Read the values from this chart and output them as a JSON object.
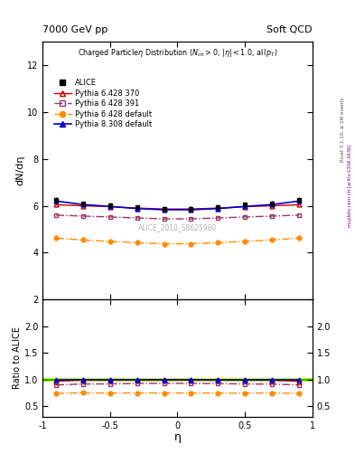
{
  "title_top_left": "7000 GeV pp",
  "title_top_right": "Soft QCD",
  "xlabel": "η",
  "ylabel_main": "dN/dη",
  "ylabel_ratio": "Ratio to ALICE",
  "watermark": "ALICE_2010_S8625980",
  "right_label": "Rivet 3.1.10, ≥ 2M events",
  "right_label2": "mcplots.cern.ch [arXiv:1306.3436]",
  "xlim": [
    -1.0,
    1.0
  ],
  "ylim_main": [
    2.0,
    13.0
  ],
  "ylim_ratio": [
    0.3,
    2.5
  ],
  "yticks_main": [
    2,
    4,
    6,
    8,
    10,
    12
  ],
  "yticks_ratio": [
    0.5,
    1.0,
    1.5,
    2.0
  ],
  "xticks": [
    -1.0,
    -0.5,
    0.0,
    0.5,
    1.0
  ],
  "eta_points": [
    -0.9,
    -0.7,
    -0.5,
    -0.3,
    -0.1,
    0.1,
    0.3,
    0.5,
    0.7,
    0.9
  ],
  "ALICE_y": [
    6.25,
    6.08,
    6.03,
    5.93,
    5.88,
    5.88,
    5.95,
    6.04,
    6.1,
    6.25
  ],
  "ALICE_yerr": [
    0.12,
    0.1,
    0.1,
    0.09,
    0.09,
    0.09,
    0.09,
    0.1,
    0.1,
    0.12
  ],
  "pythia6_370_y": [
    6.04,
    6.0,
    5.96,
    5.9,
    5.86,
    5.86,
    5.9,
    5.96,
    6.0,
    6.04
  ],
  "pythia6_391_y": [
    5.6,
    5.56,
    5.52,
    5.48,
    5.44,
    5.44,
    5.48,
    5.52,
    5.56,
    5.6
  ],
  "pythia6_default_y": [
    4.62,
    4.54,
    4.48,
    4.42,
    4.38,
    4.38,
    4.42,
    4.48,
    4.54,
    4.62
  ],
  "pythia8_default_y": [
    6.2,
    6.05,
    5.97,
    5.88,
    5.83,
    5.83,
    5.88,
    5.97,
    6.05,
    6.2
  ],
  "ALICE_color": "#000000",
  "pythia6_370_color": "#cc0000",
  "pythia6_391_color": "#993366",
  "pythia6_default_color": "#ff8c00",
  "pythia8_default_color": "#0000cc",
  "ref_band_color": "#ccff00",
  "ref_line_color": "#00aa00",
  "ref_band_lo": 0.97,
  "ref_band_hi": 1.03
}
